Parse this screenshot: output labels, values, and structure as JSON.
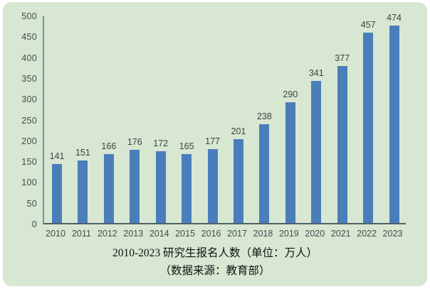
{
  "caption": {
    "title": "2010-2023 研究生报名人数（单位：万人）",
    "source": "（数据来源：教育部）"
  },
  "chart_data": {
    "type": "bar",
    "categories": [
      "2010",
      "2011",
      "2012",
      "2013",
      "2014",
      "2015",
      "2016",
      "2017",
      "2018",
      "2019",
      "2020",
      "2021",
      "2022",
      "2023"
    ],
    "values": [
      141,
      151,
      166,
      176,
      172,
      165,
      177,
      201,
      238,
      290,
      341,
      377,
      457,
      474
    ],
    "title": "2010-2023 研究生报名人数（单位：万人）",
    "source_note": "（数据来源：教育部）",
    "xlabel": "",
    "ylabel": "",
    "ylim": [
      0,
      500
    ],
    "yticks": [
      0,
      50,
      100,
      150,
      200,
      250,
      300,
      350,
      400,
      450,
      500
    ],
    "grid": false,
    "legend": "none",
    "data_labels": true,
    "colors": {
      "bar": "#4a7eba",
      "panel_background": "#d7e7d1",
      "y_axis_line": "#7195a3",
      "x_axis_line": "#4e6069",
      "tick_label": "#434c50"
    }
  }
}
